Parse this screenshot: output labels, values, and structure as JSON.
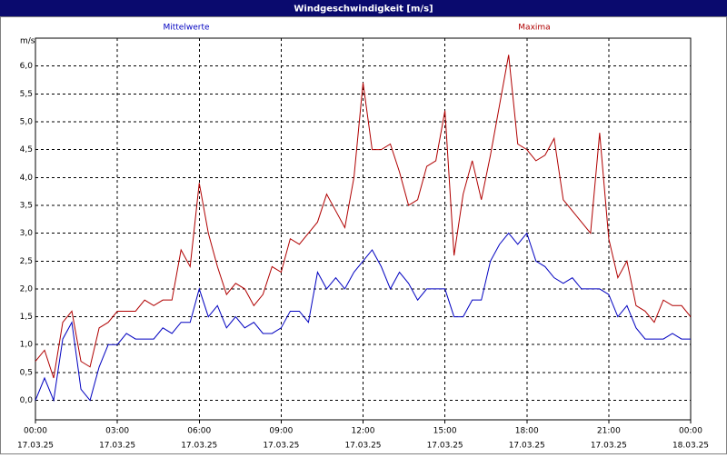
{
  "chart_data": {
    "type": "line",
    "title": "Windgeschwindigkeit [m/s]",
    "y_unit_label": "m/s",
    "x": [
      0,
      20,
      40,
      60,
      80,
      100,
      120,
      140,
      160,
      180,
      200,
      220,
      240,
      260,
      280,
      300,
      320,
      340,
      360,
      380,
      400,
      420,
      440,
      460,
      480,
      500,
      520,
      540,
      560,
      580,
      600,
      620,
      640,
      660,
      680,
      700,
      720,
      740,
      760,
      780,
      800,
      820,
      840,
      860,
      880,
      900,
      920,
      940,
      960,
      980,
      1000,
      1020,
      1040,
      1060,
      1080,
      1100,
      1120,
      1140,
      1160,
      1180,
      1200,
      1220,
      1240,
      1260,
      1280,
      1300,
      1320,
      1340,
      1360,
      1380,
      1400,
      1420,
      1440
    ],
    "series": [
      {
        "name": "Mittelwerte",
        "color": "#0000c0",
        "values": [
          0.0,
          0.4,
          0.0,
          1.1,
          1.4,
          0.2,
          0.0,
          0.6,
          1.0,
          1.0,
          1.2,
          1.1,
          1.1,
          1.1,
          1.3,
          1.2,
          1.4,
          1.4,
          2.0,
          1.5,
          1.7,
          1.3,
          1.5,
          1.3,
          1.4,
          1.2,
          1.2,
          1.3,
          1.6,
          1.6,
          1.4,
          2.3,
          2.0,
          2.2,
          2.0,
          2.3,
          2.5,
          2.7,
          2.4,
          2.0,
          2.3,
          2.1,
          1.8,
          2.0,
          2.0,
          2.0,
          1.5,
          1.5,
          1.8,
          1.8,
          2.5,
          2.8,
          3.0,
          2.8,
          3.0,
          2.5,
          2.4,
          2.2,
          2.1,
          2.2,
          2.0,
          2.0,
          2.0,
          1.9,
          1.5,
          1.7,
          1.3,
          1.1,
          1.1,
          1.1,
          1.2,
          1.1,
          1.1
        ]
      },
      {
        "name": "Maxima",
        "color": "#b00000",
        "values": [
          0.7,
          0.9,
          0.4,
          1.4,
          1.6,
          0.7,
          0.6,
          1.3,
          1.4,
          1.6,
          1.6,
          1.6,
          1.8,
          1.7,
          1.8,
          1.8,
          2.7,
          2.4,
          3.9,
          3.0,
          2.4,
          1.9,
          2.1,
          2.0,
          1.7,
          1.9,
          2.4,
          2.3,
          2.9,
          2.8,
          3.0,
          3.2,
          3.7,
          3.4,
          3.1,
          4.0,
          5.7,
          4.5,
          4.5,
          4.6,
          4.1,
          3.5,
          3.6,
          4.2,
          4.3,
          5.2,
          2.6,
          3.7,
          4.3,
          3.6,
          4.4,
          5.3,
          6.2,
          4.6,
          4.5,
          4.3,
          4.4,
          4.7,
          3.6,
          3.4,
          3.2,
          3.0,
          4.8,
          2.9,
          2.2,
          2.5,
          1.7,
          1.6,
          1.4,
          1.8,
          1.7,
          1.7,
          1.5
        ]
      }
    ],
    "xlim": [
      0,
      1440
    ],
    "xticks": [
      {
        "value": 0,
        "label": "00:00"
      },
      {
        "value": 180,
        "label": "03:00"
      },
      {
        "value": 360,
        "label": "06:00"
      },
      {
        "value": 540,
        "label": "09:00"
      },
      {
        "value": 720,
        "label": "12:00"
      },
      {
        "value": 900,
        "label": "15:00"
      },
      {
        "value": 1080,
        "label": "18:00"
      },
      {
        "value": 1260,
        "label": "21:00"
      },
      {
        "value": 1440,
        "label": "00:00"
      }
    ],
    "xtick_dates": [
      "17.03.25",
      "17.03.25",
      "17.03.25",
      "17.03.25",
      "17.03.25",
      "17.03.25",
      "17.03.25",
      "17.03.25",
      "18.03.25"
    ],
    "ylim": [
      -0.35,
      6.5
    ],
    "yticks": [
      {
        "value": 0,
        "label": "0,0"
      },
      {
        "value": 0.5,
        "label": "0,5"
      },
      {
        "value": 1,
        "label": "1,0"
      },
      {
        "value": 1.5,
        "label": "1,5"
      },
      {
        "value": 2,
        "label": "2,0"
      },
      {
        "value": 2.5,
        "label": "2,5"
      },
      {
        "value": 3,
        "label": "3,0"
      },
      {
        "value": 3.5,
        "label": "3,5"
      },
      {
        "value": 4,
        "label": "4,0"
      },
      {
        "value": 4.5,
        "label": "4,5"
      },
      {
        "value": 5,
        "label": "5,0"
      },
      {
        "value": 5.5,
        "label": "5,5"
      },
      {
        "value": 6,
        "label": "6,0"
      }
    ],
    "grid": true,
    "title_bar_color": "#0a0a6e"
  }
}
